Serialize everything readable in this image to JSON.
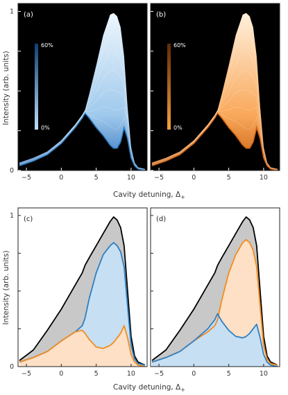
{
  "axes": {
    "xlabel": "Cavity detuning, Δ",
    "xlabel_sub": "+",
    "ylabel": "Intensity (arb. units)",
    "x_ticks": [
      "−5",
      "0",
      "5",
      "10"
    ],
    "x_tick_values": [
      -5,
      0,
      5,
      10
    ],
    "y_ticks": [
      "0",
      "1"
    ],
    "y_tick_values": [
      0,
      1
    ],
    "xlim": [
      -6.2,
      12.3
    ],
    "ylim": [
      0,
      1.05
    ]
  },
  "colors": {
    "blue": "#2f7fc1",
    "blue_fill": "#c6dff3",
    "orange": "#f28b1e",
    "orange_fill": "#fde0c6",
    "gray_fill": "#c8c8c8",
    "black": "#000000"
  },
  "chart_data": [
    {
      "type": "area",
      "panel": "(a)",
      "colorbar": {
        "top": "60%",
        "bottom": "0%",
        "colormap": "blue"
      },
      "x": [
        -6,
        -4,
        -2,
        0,
        1,
        2,
        3,
        3.4,
        4,
        5,
        6,
        7,
        7.5,
        8,
        8.5,
        9,
        9.5,
        10,
        10.5,
        11,
        12
      ],
      "lower": [
        0.03,
        0.06,
        0.1,
        0.17,
        0.22,
        0.27,
        0.33,
        0.36,
        0.33,
        0.27,
        0.22,
        0.16,
        0.14,
        0.14,
        0.18,
        0.27,
        0.2,
        0.08,
        0.03,
        0.01,
        0.0
      ],
      "upper": [
        0.05,
        0.08,
        0.12,
        0.19,
        0.24,
        0.29,
        0.35,
        0.38,
        0.48,
        0.66,
        0.85,
        0.98,
        0.99,
        0.97,
        0.9,
        0.72,
        0.4,
        0.15,
        0.05,
        0.02,
        0.01
      ]
    },
    {
      "type": "area",
      "panel": "(b)",
      "colorbar": {
        "top": "60%",
        "bottom": "0%",
        "colormap": "orange"
      },
      "x": [
        -6,
        -4,
        -2,
        0,
        1,
        2,
        3,
        3.4,
        4,
        5,
        6,
        7,
        7.5,
        8,
        8.5,
        9,
        9.5,
        10,
        10.5,
        11,
        12
      ],
      "lower": [
        0.03,
        0.06,
        0.1,
        0.17,
        0.22,
        0.27,
        0.33,
        0.36,
        0.33,
        0.27,
        0.22,
        0.16,
        0.14,
        0.14,
        0.18,
        0.27,
        0.2,
        0.08,
        0.03,
        0.01,
        0.0
      ],
      "upper": [
        0.05,
        0.08,
        0.12,
        0.19,
        0.24,
        0.29,
        0.35,
        0.38,
        0.48,
        0.66,
        0.85,
        0.98,
        0.99,
        0.97,
        0.9,
        0.72,
        0.4,
        0.15,
        0.05,
        0.02,
        0.01
      ]
    },
    {
      "type": "area",
      "panel": "(c)",
      "x": [
        -6,
        -4,
        -2,
        0,
        1,
        2,
        3,
        3.4,
        4,
        5,
        6,
        7,
        7.5,
        8,
        8.5,
        9,
        9.5,
        10,
        10.5,
        11,
        12
      ],
      "series": [
        {
          "color_key": "black",
          "fill_key": "gray_fill",
          "values": [
            0.04,
            0.11,
            0.24,
            0.38,
            0.46,
            0.54,
            0.62,
            0.67,
            0.72,
            0.8,
            0.88,
            0.96,
            0.99,
            0.97,
            0.92,
            0.8,
            0.5,
            0.2,
            0.07,
            0.03,
            0.01
          ]
        },
        {
          "color_key": "blue",
          "fill_key": "blue_fill",
          "values": [
            0.03,
            0.06,
            0.1,
            0.17,
            0.2,
            0.23,
            0.27,
            0.32,
            0.45,
            0.62,
            0.74,
            0.8,
            0.82,
            0.8,
            0.76,
            0.66,
            0.4,
            0.14,
            0.05,
            0.02,
            0.01
          ]
        },
        {
          "color_key": "orange",
          "fill_key": "orange_fill",
          "values": [
            0.03,
            0.06,
            0.1,
            0.17,
            0.2,
            0.23,
            0.24,
            0.22,
            0.18,
            0.13,
            0.12,
            0.14,
            0.16,
            0.19,
            0.22,
            0.27,
            0.19,
            0.08,
            0.03,
            0.01,
            0.0
          ]
        }
      ]
    },
    {
      "type": "area",
      "panel": "(d)",
      "x": [
        -6,
        -4,
        -2,
        0,
        1,
        2,
        3,
        3.4,
        4,
        5,
        6,
        7,
        7.5,
        8,
        8.5,
        9,
        9.5,
        10,
        10.5,
        11,
        12
      ],
      "series": [
        {
          "color_key": "black",
          "fill_key": "gray_fill",
          "values": [
            0.04,
            0.11,
            0.24,
            0.38,
            0.46,
            0.54,
            0.62,
            0.67,
            0.72,
            0.8,
            0.88,
            0.96,
            0.99,
            0.97,
            0.92,
            0.8,
            0.5,
            0.2,
            0.07,
            0.03,
            0.01
          ]
        },
        {
          "color_key": "orange",
          "fill_key": "orange_fill",
          "values": [
            0.03,
            0.06,
            0.1,
            0.17,
            0.2,
            0.23,
            0.27,
            0.31,
            0.44,
            0.62,
            0.74,
            0.82,
            0.84,
            0.82,
            0.77,
            0.66,
            0.4,
            0.14,
            0.05,
            0.02,
            0.01
          ]
        },
        {
          "color_key": "blue",
          "fill_key": "blue_fill",
          "values": [
            0.03,
            0.06,
            0.1,
            0.17,
            0.21,
            0.25,
            0.31,
            0.35,
            0.3,
            0.24,
            0.2,
            0.19,
            0.2,
            0.22,
            0.25,
            0.28,
            0.19,
            0.08,
            0.03,
            0.01,
            0.0
          ]
        }
      ]
    }
  ]
}
